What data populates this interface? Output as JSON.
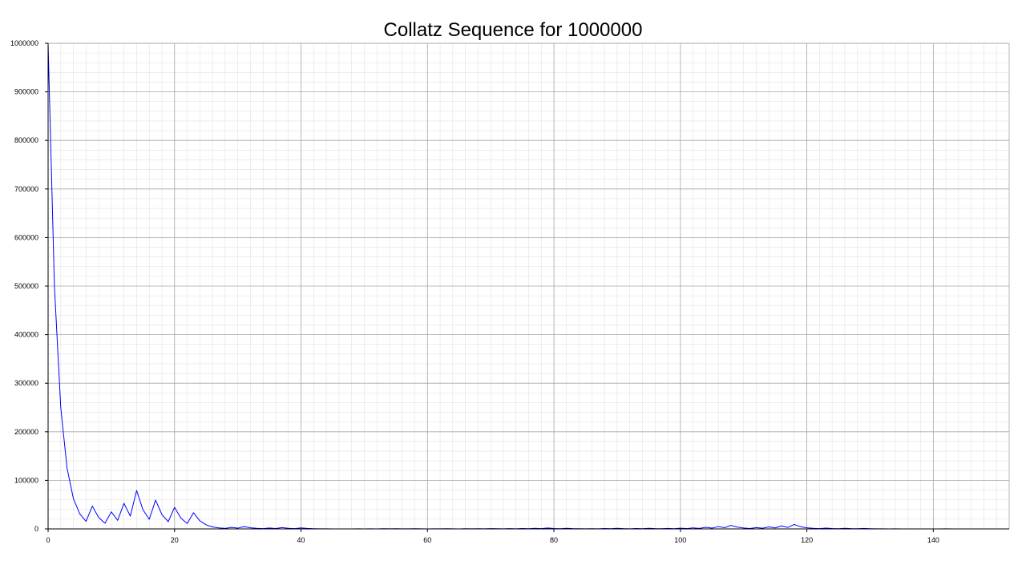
{
  "chart_data": {
    "type": "line",
    "title": "Collatz Sequence for 1000000",
    "xlabel": "",
    "ylabel": "",
    "xlim": [
      0,
      152
    ],
    "ylim": [
      0,
      1000000
    ],
    "x_ticks": [
      0,
      20,
      40,
      60,
      80,
      100,
      120,
      140
    ],
    "y_ticks": [
      0,
      100000,
      200000,
      300000,
      400000,
      500000,
      600000,
      700000,
      800000,
      900000,
      1000000
    ],
    "grid": true,
    "legend": "none",
    "line_color": "#0000ff",
    "series": [
      {
        "values": [
          1000000,
          500000,
          250000,
          125000,
          62500,
          31250,
          15625,
          46876,
          23438,
          11719,
          35158,
          17579,
          52738,
          26369,
          79108,
          39554,
          19777,
          59332,
          29666,
          14833,
          44500,
          22250,
          11125,
          33376,
          16688,
          8344,
          4172,
          2086,
          1043,
          3130,
          1565,
          4696,
          2348,
          1174,
          587,
          1762,
          881,
          2644,
          1322,
          661,
          1984,
          992,
          496,
          248,
          124,
          62,
          31,
          94,
          47,
          142,
          71,
          214,
          107,
          322,
          161,
          484,
          242,
          121,
          364,
          182,
          91,
          274,
          137,
          412,
          206,
          103,
          310,
          155,
          466,
          233,
          700,
          350,
          175,
          526,
          263,
          790,
          395,
          1186,
          593,
          1780,
          890,
          445,
          1336,
          668,
          334,
          167,
          502,
          251,
          754,
          377,
          1132,
          566,
          283,
          850,
          425,
          1276,
          638,
          319,
          958,
          479,
          1438,
          719,
          2158,
          1079,
          3238,
          1619,
          4858,
          2429,
          7288,
          3644,
          1822,
          911,
          2734,
          1367,
          4102,
          2051,
          6154,
          3077,
          9232,
          4616,
          2308,
          1154,
          577,
          1732,
          866,
          433,
          1300,
          650,
          325,
          976,
          488,
          244,
          122,
          61,
          184,
          92,
          46,
          23,
          70,
          35,
          106,
          53,
          160,
          80,
          40,
          20,
          10,
          5,
          16,
          8,
          4,
          2,
          1
        ]
      }
    ]
  }
}
